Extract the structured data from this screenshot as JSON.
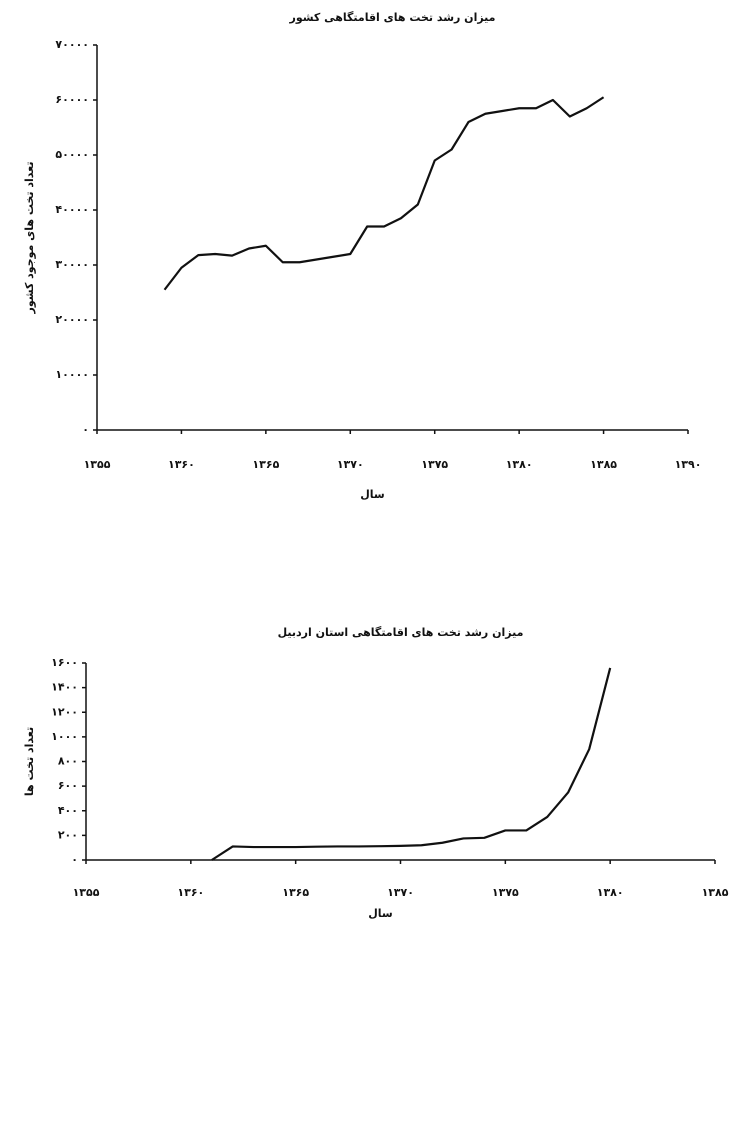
{
  "chart_data": [
    {
      "type": "line",
      "title": "میزان رشد تخت های اقامتگاهی کشور",
      "y_label": "تعداد تخت های موجود کشور",
      "x_label": "سال",
      "x": [
        1359,
        1360,
        1361,
        1362,
        1363,
        1364,
        1365,
        1366,
        1367,
        1368,
        1369,
        1370,
        1371,
        1372,
        1373,
        1374,
        1375,
        1376,
        1377,
        1378,
        1379,
        1380,
        1381,
        1382,
        1383,
        1384,
        1385
      ],
      "values": [
        25500,
        29500,
        31800,
        32000,
        31700,
        33000,
        33500,
        30500,
        30500,
        31000,
        31500,
        32000,
        37000,
        37000,
        38500,
        41000,
        49000,
        51000,
        56000,
        57500,
        58000,
        58500,
        58500,
        60000,
        57000,
        58500,
        60500
      ],
      "color": "#111111",
      "xlim": [
        1355,
        1390
      ],
      "xticks": [
        {
          "value": 1355,
          "label": "۱۳۵۵"
        },
        {
          "value": 1360,
          "label": "۱۳۶۰"
        },
        {
          "value": 1365,
          "label": "۱۳۶۵"
        },
        {
          "value": 1370,
          "label": "۱۳۷۰"
        },
        {
          "value": 1375,
          "label": "۱۳۷۵"
        },
        {
          "value": 1380,
          "label": "۱۳۸۰"
        },
        {
          "value": 1385,
          "label": "۱۳۸۵"
        },
        {
          "value": 1390,
          "label": "۱۳۹۰"
        }
      ],
      "ylim": [
        0,
        70000
      ],
      "yticks": [
        {
          "value": 0,
          "label": "۰"
        },
        {
          "value": 10000,
          "label": "۱۰۰۰۰"
        },
        {
          "value": 20000,
          "label": "۲۰۰۰۰"
        },
        {
          "value": 30000,
          "label": "۳۰۰۰۰"
        },
        {
          "value": 40000,
          "label": "۴۰۰۰۰"
        },
        {
          "value": 50000,
          "label": "۵۰۰۰۰"
        },
        {
          "value": 60000,
          "label": "۶۰۰۰۰"
        },
        {
          "value": 70000,
          "label": "۷۰۰۰۰"
        }
      ],
      "grid": false
    },
    {
      "type": "line",
      "title": "میزان رشد تخت های اقامتگاهی استان اردبیل",
      "y_label": "تعداد تخت ها",
      "x_label": "سال",
      "x": [
        1361,
        1362,
        1363,
        1364,
        1365,
        1366,
        1367,
        1368,
        1369,
        1370,
        1371,
        1372,
        1373,
        1374,
        1375,
        1376,
        1377,
        1378,
        1379,
        1380
      ],
      "values": [
        0,
        110,
        105,
        105,
        105,
        108,
        110,
        110,
        112,
        115,
        120,
        140,
        175,
        180,
        240,
        240,
        350,
        550,
        900,
        1560
      ],
      "color": "#111111",
      "xlim": [
        1355,
        1385
      ],
      "xticks": [
        {
          "value": 1355,
          "label": "۱۳۵۵"
        },
        {
          "value": 1360,
          "label": "۱۳۶۰"
        },
        {
          "value": 1365,
          "label": "۱۳۶۵"
        },
        {
          "value": 1370,
          "label": "۱۳۷۰"
        },
        {
          "value": 1375,
          "label": "۱۳۷۵"
        },
        {
          "value": 1380,
          "label": "۱۳۸۰"
        },
        {
          "value": 1385,
          "label": "۱۳۸۵"
        }
      ],
      "ylim": [
        0,
        1600
      ],
      "yticks": [
        {
          "value": 0,
          "label": "۰"
        },
        {
          "value": 200,
          "label": "۲۰۰"
        },
        {
          "value": 400,
          "label": "۴۰۰"
        },
        {
          "value": 600,
          "label": "۶۰۰"
        },
        {
          "value": 800,
          "label": "۸۰۰"
        },
        {
          "value": 1000,
          "label": "۱۰۰۰"
        },
        {
          "value": 1200,
          "label": "۱۲۰۰"
        },
        {
          "value": 1400,
          "label": "۱۴۰۰"
        },
        {
          "value": 1600,
          "label": "۱۶۰۰"
        }
      ],
      "grid": false
    }
  ]
}
